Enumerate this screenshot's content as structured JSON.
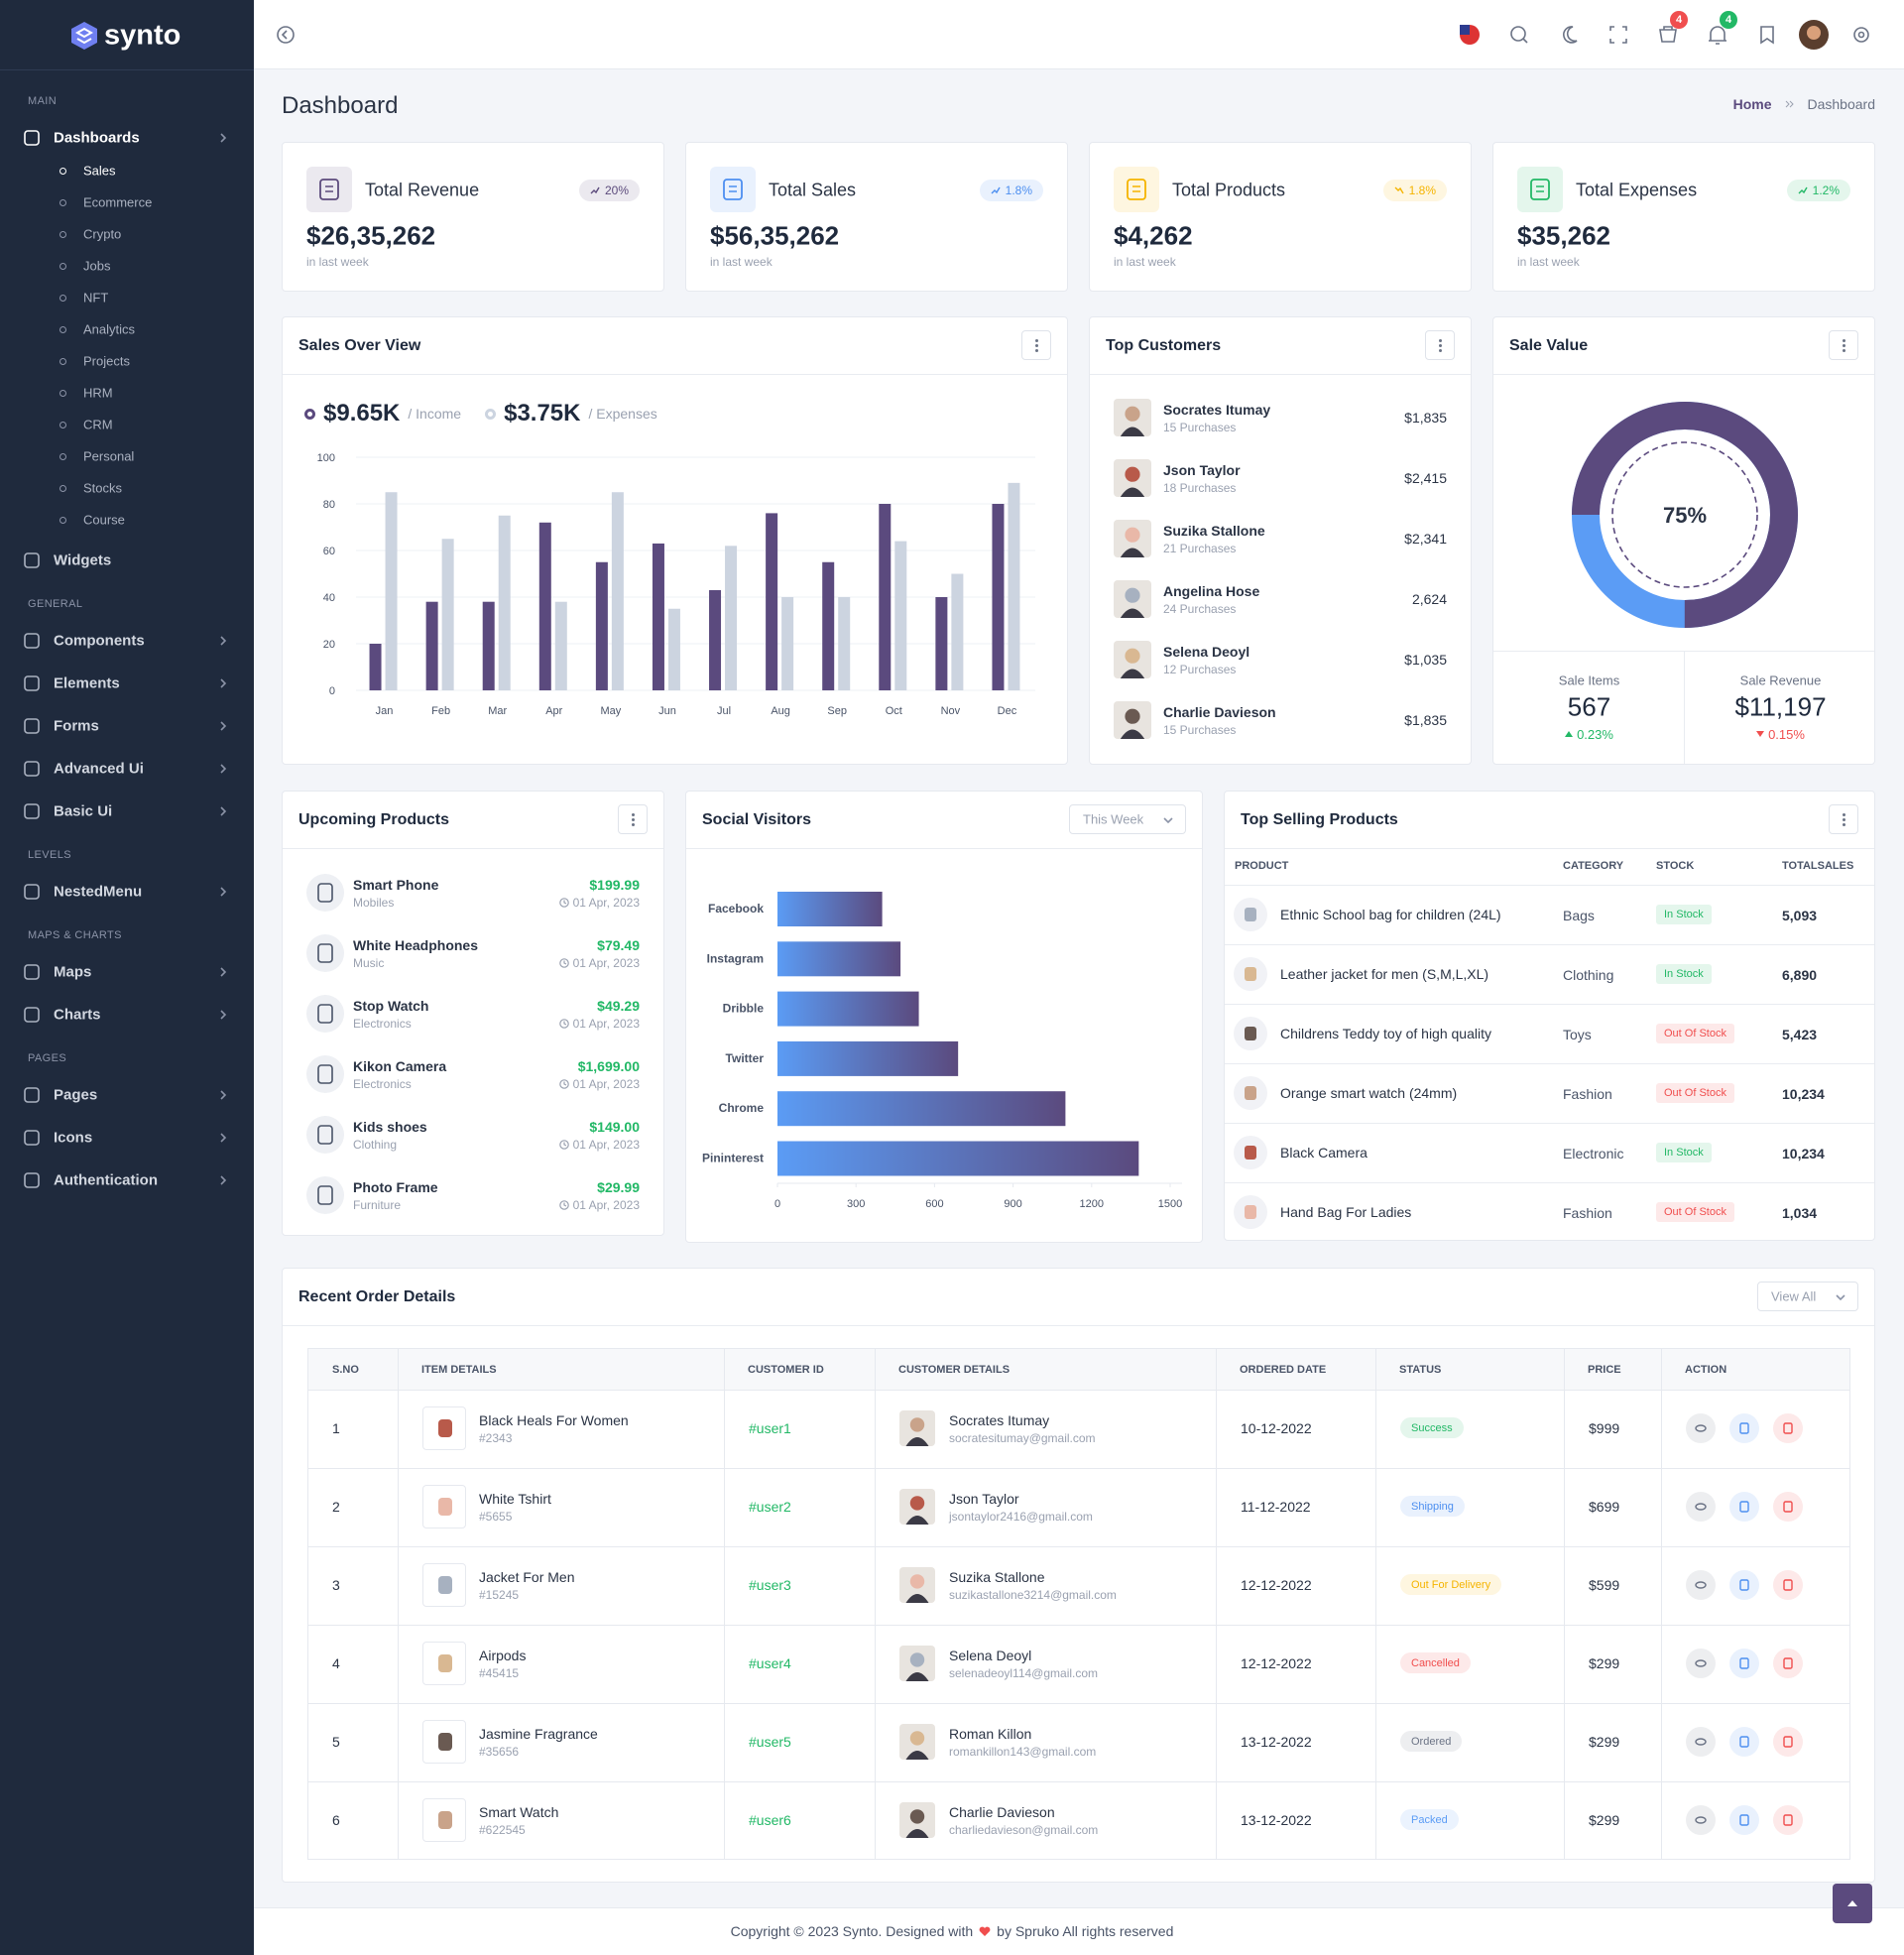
{
  "sidebar": {
    "brand": "synto",
    "sections": [
      {
        "title": "MAIN",
        "items": [
          {
            "label": "Dashboards",
            "active": true,
            "has_submenu": true,
            "active_child": 0,
            "children": [
              "Sales",
              "Ecommerce",
              "Crypto",
              "Jobs",
              "NFT",
              "Analytics",
              "Projects",
              "HRM",
              "CRM",
              "Personal",
              "Stocks",
              "Course"
            ]
          },
          {
            "label": "Widgets",
            "active": false,
            "has_submenu": false
          }
        ]
      },
      {
        "title": "GENERAL",
        "items": [
          {
            "label": "Components",
            "active": false,
            "has_submenu": true
          },
          {
            "label": "Elements",
            "active": false,
            "has_submenu": true
          },
          {
            "label": "Forms",
            "active": false,
            "has_submenu": true
          },
          {
            "label": "Advanced Ui",
            "active": false,
            "has_submenu": true
          },
          {
            "label": "Basic Ui",
            "active": false,
            "has_submenu": true
          }
        ]
      },
      {
        "title": "LEVELS",
        "items": [
          {
            "label": "NestedMenu",
            "active": false,
            "has_submenu": true
          }
        ]
      },
      {
        "title": "MAPS & CHARTS",
        "items": [
          {
            "label": "Maps",
            "active": false,
            "has_submenu": true
          },
          {
            "label": "Charts",
            "active": false,
            "has_submenu": true
          }
        ]
      },
      {
        "title": "PAGES",
        "items": [
          {
            "label": "Pages",
            "active": false,
            "has_submenu": true
          },
          {
            "label": "Icons",
            "active": false,
            "has_submenu": true
          },
          {
            "label": "Authentication",
            "active": false,
            "has_submenu": true
          }
        ]
      }
    ]
  },
  "header": {
    "cart_badge": "4",
    "notification_badge": "4"
  },
  "page": {
    "title": "Dashboard",
    "breadcrumb": [
      "Home",
      "Dashboard"
    ]
  },
  "stats": [
    {
      "title": "Total Revenue",
      "change": "20%",
      "trend": "up",
      "value": "$26,35,262",
      "note": "in last week",
      "color": "#5c4b7c"
    },
    {
      "title": "Total Sales",
      "change": "1.8%",
      "trend": "up",
      "value": "$56,35,262",
      "note": "in last week",
      "color": "#4d8ff0"
    },
    {
      "title": "Total Products",
      "change": "1.8%",
      "trend": "down",
      "value": "$4,262",
      "note": "in last week",
      "color": "#f5b400"
    },
    {
      "title": "Total Expenses",
      "change": "1.2%",
      "trend": "up",
      "value": "$35,262",
      "note": "in last week",
      "color": "#22b866"
    }
  ],
  "sales_overview": {
    "title": "Sales Over View",
    "chart": {
      "type": "bar",
      "categories": [
        "Jan",
        "Feb",
        "Mar",
        "Apr",
        "May",
        "Jun",
        "Jul",
        "Aug",
        "Sep",
        "Oct",
        "Nov",
        "Dec"
      ],
      "series": [
        {
          "name": "/ Income",
          "amount": "$9.65K",
          "color": "#5b4a7e",
          "values": [
            20,
            38,
            38,
            72,
            55,
            63,
            43,
            76,
            55,
            80,
            40,
            80
          ]
        },
        {
          "name": "/ Expenses",
          "amount": "$3.75K",
          "color": "#ccd4e0",
          "values": [
            85,
            65,
            75,
            38,
            85,
            35,
            62,
            40,
            40,
            64,
            50,
            89
          ]
        }
      ],
      "ylim": [
        0,
        100
      ],
      "yticks": [
        0,
        20,
        40,
        60,
        80,
        100
      ],
      "grid": true
    }
  },
  "top_customers": {
    "title": "Top Customers",
    "rows": [
      {
        "name": "Socrates Itumay",
        "purchases": "15 Purchases",
        "amount": "$1,835"
      },
      {
        "name": "Json Taylor",
        "purchases": "18 Purchases",
        "amount": "$2,415"
      },
      {
        "name": "Suzika Stallone",
        "purchases": "21 Purchases",
        "amount": "$2,341"
      },
      {
        "name": "Angelina Hose",
        "purchases": "24 Purchases",
        "amount": "2,624"
      },
      {
        "name": "Selena Deoyl",
        "purchases": "12 Purchases",
        "amount": "$1,035"
      },
      {
        "name": "Charlie Davieson",
        "purchases": "15 Purchases",
        "amount": "$1,835"
      }
    ]
  },
  "sale_value": {
    "title": "Sale Value",
    "chart": {
      "type": "donut",
      "values": [
        75
      ],
      "value_labels": [
        "75%"
      ],
      "ylim": [
        0,
        100
      ],
      "color": "#5b4a7e",
      "track_color": "#5b9cf5"
    },
    "summary": [
      {
        "label": "Sale Items",
        "value": "567",
        "change": "0.23%",
        "trend": "up"
      },
      {
        "label": "Sale Revenue",
        "value": "$11,197",
        "change": "0.15%",
        "trend": "down"
      }
    ]
  },
  "upcoming_products": {
    "title": "Upcoming Products",
    "rows": [
      {
        "name": "Smart Phone",
        "category": "Mobiles",
        "price": "$199.99",
        "date": "01 Apr, 2023"
      },
      {
        "name": "White Headphones",
        "category": "Music",
        "price": "$79.49",
        "date": "01 Apr, 2023"
      },
      {
        "name": "Stop Watch",
        "category": "Electronics",
        "price": "$49.29",
        "date": "01 Apr, 2023"
      },
      {
        "name": "Kikon Camera",
        "category": "Electronics",
        "price": "$1,699.00",
        "date": "01 Apr, 2023"
      },
      {
        "name": "Kids shoes",
        "category": "Clothing",
        "price": "$149.00",
        "date": "01 Apr, 2023"
      },
      {
        "name": "Photo Frame",
        "category": "Furniture",
        "price": "$29.99",
        "date": "01 Apr, 2023"
      }
    ]
  },
  "social_visitors": {
    "title": "Social Visitors",
    "filter": "This Week",
    "chart": {
      "type": "hbar",
      "categories": [
        "Facebook",
        "Instagram",
        "Dribble",
        "Twitter",
        "Chrome",
        "Pininterest"
      ],
      "values": [
        400,
        470,
        540,
        690,
        1100,
        1380
      ],
      "xlim": [
        0,
        1500
      ],
      "xticks": [
        0,
        300,
        600,
        900,
        1200,
        1500
      ],
      "gradient": [
        "#5b9cf5",
        "#5b4a7e"
      ]
    }
  },
  "top_selling": {
    "title": "Top Selling Products",
    "columns": [
      "PRODUCT",
      "CATEGORY",
      "STOCK",
      "TOTALSALES"
    ],
    "rows": [
      {
        "product": "Ethnic School bag for children (24L)",
        "category": "Bags",
        "stock": "In Stock",
        "stock_color": "#22b866",
        "total": "5,093"
      },
      {
        "product": "Leather jacket for men (S,M,L,XL)",
        "category": "Clothing",
        "stock": "In Stock",
        "stock_color": "#22b866",
        "total": "6,890"
      },
      {
        "product": "Childrens Teddy toy of high quality",
        "category": "Toys",
        "stock": "Out Of Stock",
        "stock_color": "#f04e4e",
        "total": "5,423"
      },
      {
        "product": "Orange smart watch (24mm)",
        "category": "Fashion",
        "stock": "Out Of Stock",
        "stock_color": "#f04e4e",
        "total": "10,234"
      },
      {
        "product": "Black Camera",
        "category": "Electronic",
        "stock": "In Stock",
        "stock_color": "#22b866",
        "total": "10,234"
      },
      {
        "product": "Hand Bag For Ladies",
        "category": "Fashion",
        "stock": "Out Of Stock",
        "stock_color": "#f04e4e",
        "total": "1,034"
      }
    ]
  },
  "recent_orders": {
    "title": "Recent Order Details",
    "button": "View All",
    "columns": [
      "S.NO",
      "ITEM DETAILS",
      "CUSTOMER ID",
      "CUSTOMER DETAILS",
      "ORDERED DATE",
      "STATUS",
      "PRICE",
      "ACTION"
    ],
    "rows": [
      {
        "sno": 1,
        "item": "Black Heals For Women",
        "item_id": "#2343",
        "customer_id": "#user1",
        "customer": "Socrates Itumay",
        "email": "socratesitumay@gmail.com",
        "date": "10-12-2022",
        "status": "Success",
        "status_color": "#22b866",
        "price": "$999"
      },
      {
        "sno": 2,
        "item": "White Tshirt",
        "item_id": "#5655",
        "customer_id": "#user2",
        "customer": "Json Taylor",
        "email": "jsontaylor2416@gmail.com",
        "date": "11-12-2022",
        "status": "Shipping",
        "status_color": "#4d8ff0",
        "price": "$699"
      },
      {
        "sno": 3,
        "item": "Jacket For Men",
        "item_id": "#15245",
        "customer_id": "#user3",
        "customer": "Suzika Stallone",
        "email": "suzikastallone3214@gmail.com",
        "date": "12-12-2022",
        "status": "Out For Delivery",
        "status_color": "#f5b400",
        "price": "$599"
      },
      {
        "sno": 4,
        "item": "Airpods",
        "item_id": "#45415",
        "customer_id": "#user4",
        "customer": "Selena Deoyl",
        "email": "selenadeoyl114@gmail.com",
        "date": "12-12-2022",
        "status": "Cancelled",
        "status_color": "#f04e4e",
        "price": "$299"
      },
      {
        "sno": 5,
        "item": "Jasmine Fragrance",
        "item_id": "#35656",
        "customer_id": "#user5",
        "customer": "Roman Killon",
        "email": "romankillon143@gmail.com",
        "date": "13-12-2022",
        "status": "Ordered",
        "status_color": "#6b7385",
        "price": "$299"
      },
      {
        "sno": 6,
        "item": "Smart Watch",
        "item_id": "#622545",
        "customer_id": "#user6",
        "customer": "Charlie Davieson",
        "email": "charliedavieson@gmail.com",
        "date": "13-12-2022",
        "status": "Packed",
        "status_color": "#5b9cf5",
        "price": "$299"
      }
    ]
  },
  "footer": {
    "before": "Copyright © 2023 Synto. Designed with",
    "after": "by Spruko All rights reserved"
  }
}
